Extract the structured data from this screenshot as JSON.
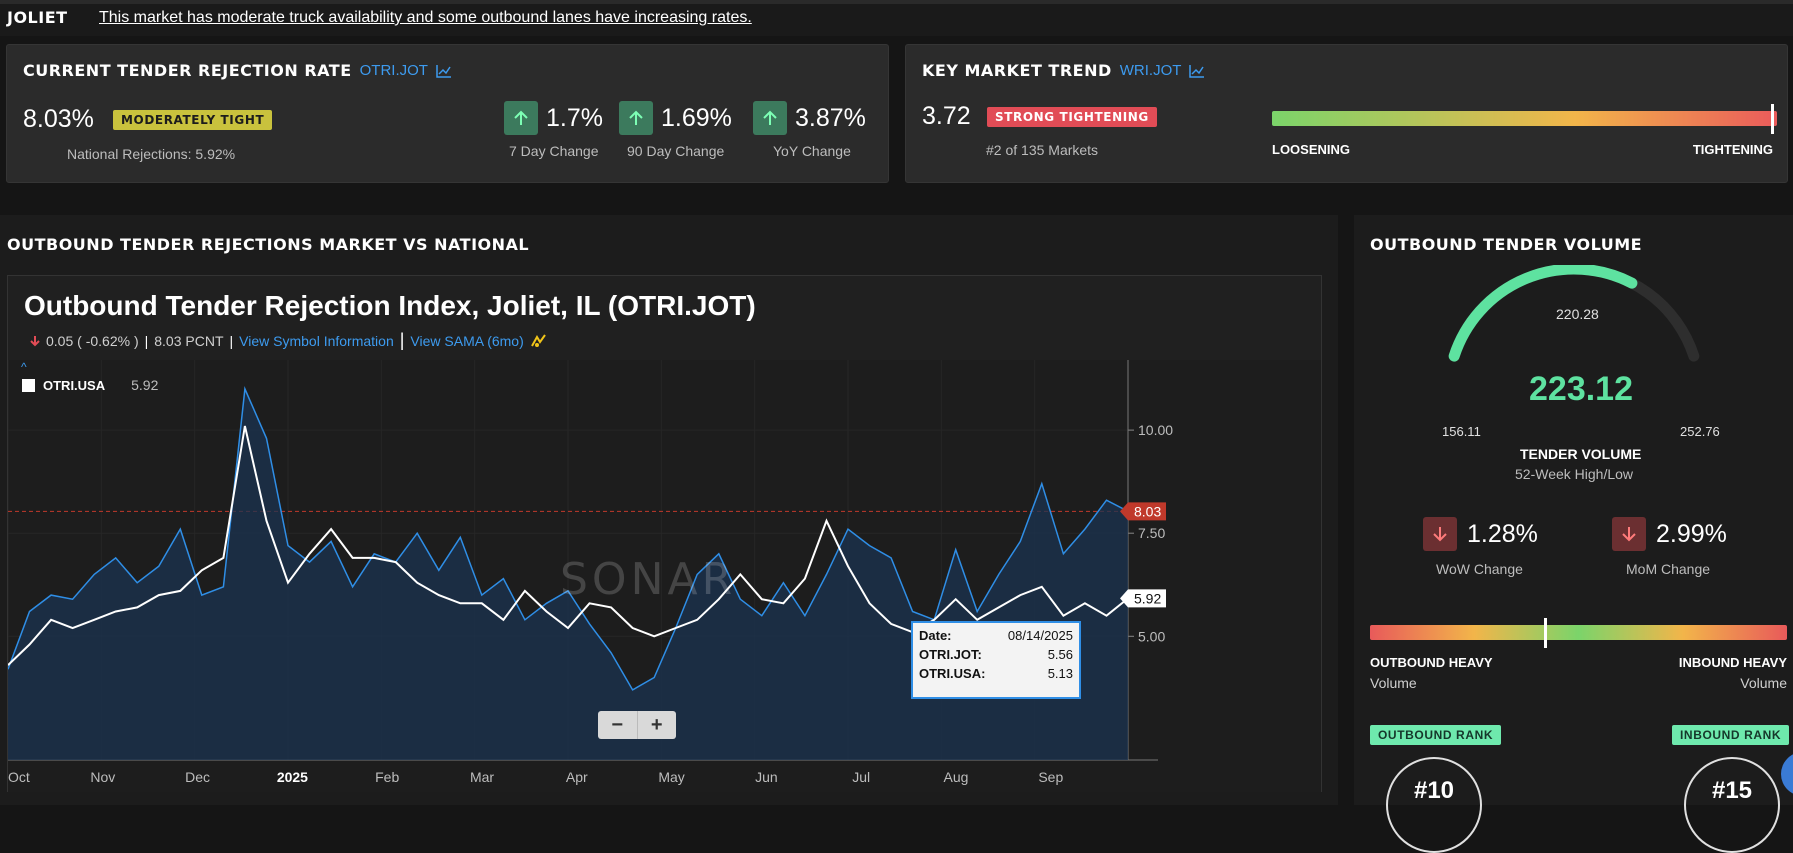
{
  "market": {
    "name": "JOLIET",
    "summary": "This market has moderate truck availability and some outbound lanes have increasing rates."
  },
  "tender_rejection": {
    "title": "CURRENT TENDER REJECTION RATE",
    "symbol": "OTRI.JOT",
    "value": "8.03%",
    "badge": "MODERATELY TIGHT",
    "national": "National Rejections: 5.92%",
    "changes": [
      {
        "value": "1.7%",
        "label": "7 Day Change",
        "direction": "up"
      },
      {
        "value": "1.69%",
        "label": "90 Day Change",
        "direction": "up"
      },
      {
        "value": "3.87%",
        "label": "YoY Change",
        "direction": "up"
      }
    ]
  },
  "key_trend": {
    "title": "KEY MARKET TREND",
    "symbol": "WRI.JOT",
    "value": "3.72",
    "badge": "STRONG TIGHTENING",
    "rank": "#2 of 135 Markets",
    "left_label": "LOOSENING",
    "right_label": "TIGHTENING",
    "level": 0.99
  },
  "outbound_section": {
    "title": "OUTBOUND TENDER REJECTIONS MARKET VS NATIONAL",
    "chart_title": "Outbound Tender Rejection Index, Joliet, IL (OTRI.JOT)",
    "change": "0.05 ( -0.62% )",
    "pcnt": "8.03 PCNT",
    "separator": "|",
    "view_symbol": "View Symbol Information",
    "view_sama": "View SAMA (6mo)",
    "legend_name": "OTRI.USA",
    "legend_value": "5.92",
    "watermark": "SONAR",
    "zoom_out": "−",
    "zoom_in": "+",
    "tooltip": {
      "date_label": "Date:",
      "date_value": "08/14/2025",
      "jot_label": "OTRI.JOT:",
      "jot_value": "5.56",
      "usa_label": "OTRI.USA:",
      "usa_value": "5.13"
    },
    "last_jot_label": "8.03",
    "last_usa_label": "5.92",
    "colors": {
      "jot": "#2f8ee6",
      "usa": "#ffffff",
      "ref": "#c0392b"
    }
  },
  "chart_data": {
    "type": "line",
    "x_labels": [
      "Oct",
      "Nov",
      "Dec",
      "2025",
      "Feb",
      "Mar",
      "Apr",
      "May",
      "Jun",
      "Jul",
      "Aug",
      "Sep"
    ],
    "y_ticks": [
      "10.00",
      "7.50",
      "5.00"
    ],
    "ylim": [
      2.0,
      11.7
    ],
    "series": [
      {
        "name": "OTRI.JOT",
        "values": [
          4.2,
          5.6,
          6.0,
          5.9,
          6.5,
          6.9,
          6.3,
          6.7,
          7.6,
          6.0,
          6.2,
          11.0,
          9.8,
          7.2,
          6.8,
          7.3,
          6.2,
          7.0,
          6.8,
          7.5,
          6.6,
          7.4,
          6.0,
          6.4,
          5.4,
          5.8,
          6.1,
          5.3,
          4.6,
          3.7,
          4.0,
          5.2,
          6.5,
          7.0,
          5.9,
          5.5,
          6.3,
          5.5,
          6.5,
          7.6,
          7.2,
          6.9,
          5.6,
          5.4,
          7.1,
          5.6,
          6.5,
          7.3,
          8.7,
          7.0,
          7.6,
          8.3,
          8.03
        ]
      },
      {
        "name": "OTRI.USA",
        "values": [
          4.3,
          4.8,
          5.4,
          5.2,
          5.4,
          5.6,
          5.7,
          6.0,
          6.1,
          6.6,
          6.9,
          10.1,
          7.8,
          6.3,
          7.0,
          7.6,
          6.9,
          6.9,
          6.8,
          6.3,
          6.0,
          5.8,
          5.8,
          5.4,
          6.1,
          5.6,
          5.2,
          5.8,
          5.7,
          5.2,
          5.0,
          5.2,
          5.4,
          5.9,
          6.5,
          5.9,
          5.8,
          6.4,
          7.8,
          6.7,
          5.8,
          5.3,
          5.1,
          5.4,
          5.9,
          5.4,
          5.7,
          6.0,
          6.2,
          5.5,
          5.8,
          5.5,
          5.92
        ]
      }
    ],
    "reference_line": 8.03
  },
  "volume": {
    "title": "OUTBOUND TENDER VOLUME",
    "value": "223.12",
    "marker_value": "220.28",
    "min": "156.11",
    "max": "252.76",
    "fill_fraction": 0.69,
    "label": "TENDER VOLUME",
    "sublabel": "52-Week High/Low",
    "changes": [
      {
        "value": "1.28%",
        "label": "WoW Change",
        "direction": "down"
      },
      {
        "value": "2.99%",
        "label": "MoM Change",
        "direction": "down"
      }
    ],
    "balance_left": "OUTBOUND HEAVY",
    "balance_left_sub": "Volume",
    "balance_right": "INBOUND HEAVY",
    "balance_right_sub": "Volume",
    "balance_level": 0.42,
    "outbound_rank_label": "OUTBOUND RANK",
    "outbound_rank": "#10",
    "inbound_rank_label": "INBOUND RANK",
    "inbound_rank": "#15"
  }
}
